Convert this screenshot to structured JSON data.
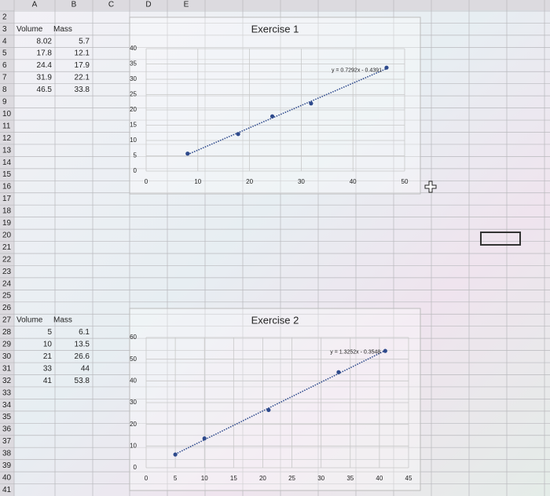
{
  "columns": [
    "A",
    "B",
    "C",
    "D",
    "E"
  ],
  "rows": [
    2,
    3,
    4,
    5,
    6,
    7,
    8,
    9,
    10,
    11,
    12,
    13,
    14,
    15,
    16,
    17,
    18,
    19,
    20,
    21,
    22,
    23,
    24,
    25,
    26,
    27,
    28,
    29,
    30,
    31,
    32,
    33,
    34,
    35,
    36,
    37,
    38,
    39,
    40,
    41
  ],
  "tables": [
    {
      "header": [
        "Volume",
        "Mass"
      ],
      "rows": [
        [
          8.02,
          5.7
        ],
        [
          17.8,
          12.1
        ],
        [
          24.4,
          17.9
        ],
        [
          31.9,
          22.1
        ],
        [
          46.5,
          33.8
        ]
      ]
    },
    {
      "header": [
        "Volume",
        "Mass"
      ],
      "rows": [
        [
          5,
          6.1
        ],
        [
          10,
          13.5
        ],
        [
          21,
          26.6
        ],
        [
          33,
          44
        ],
        [
          41,
          53.8
        ]
      ]
    }
  ],
  "chart_data": [
    {
      "type": "scatter",
      "title": "Exercise 1",
      "color": "#2e4a8c",
      "x": [
        8.02,
        17.8,
        24.4,
        31.9,
        46.5
      ],
      "values": [
        5.7,
        12.1,
        17.9,
        22.1,
        33.8
      ],
      "trendline": {
        "slope": 0.7292,
        "intercept": -0.4391,
        "label": "y = 0.7292x - 0.4391"
      },
      "xlim": [
        0,
        50
      ],
      "xticks": [
        0,
        10,
        20,
        30,
        40,
        50
      ],
      "ylim": [
        0,
        40
      ],
      "yticks": [
        0,
        5,
        10,
        15,
        20,
        25,
        30,
        35,
        40
      ],
      "grid": true
    },
    {
      "type": "scatter",
      "title": "Exercise 2",
      "color": "#2e4a8c",
      "x": [
        5,
        10,
        21,
        33,
        41
      ],
      "values": [
        6.1,
        13.5,
        26.6,
        44,
        53.8
      ],
      "trendline": {
        "slope": 1.3252,
        "intercept": -0.3548,
        "label": "y = 1.3252x - 0.3548"
      },
      "xlim": [
        0,
        45
      ],
      "xticks": [
        0,
        5,
        10,
        15,
        20,
        25,
        30,
        35,
        40,
        45
      ],
      "ylim": [
        0,
        60
      ],
      "yticks": [
        0,
        10,
        20,
        30,
        40,
        50,
        60
      ],
      "grid": true
    }
  ]
}
